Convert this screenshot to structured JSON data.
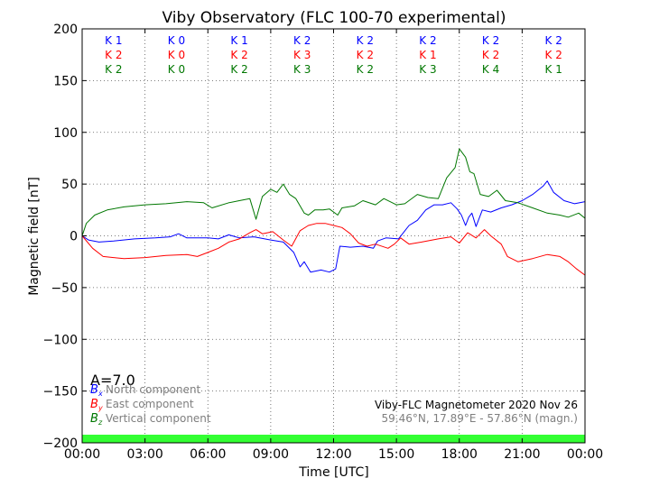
{
  "chart_data": {
    "type": "line",
    "title": "Viby Observatory (FLC 100-70 experimental)",
    "xlabel": "Time [UTC]",
    "ylabel": "Magnetic field [nT]",
    "xlim": [
      0,
      24
    ],
    "ylim": [
      -200,
      200
    ],
    "x_ticks": [
      {
        "value": 0,
        "label": "00:00"
      },
      {
        "value": 3,
        "label": "03:00"
      },
      {
        "value": 6,
        "label": "06:00"
      },
      {
        "value": 9,
        "label": "09:00"
      },
      {
        "value": 12,
        "label": "12:00"
      },
      {
        "value": 15,
        "label": "15:00"
      },
      {
        "value": 18,
        "label": "18:00"
      },
      {
        "value": 21,
        "label": "21:00"
      },
      {
        "value": 24,
        "label": "00:00"
      }
    ],
    "y_ticks": [
      {
        "value": 200,
        "label": "200"
      },
      {
        "value": 150,
        "label": "150"
      },
      {
        "value": 100,
        "label": "100"
      },
      {
        "value": 50,
        "label": "50"
      },
      {
        "value": 0,
        "label": "0"
      },
      {
        "value": -50,
        "label": "−50"
      },
      {
        "value": -100,
        "label": "−100"
      },
      {
        "value": -150,
        "label": "−150"
      },
      {
        "value": -200,
        "label": "−200"
      }
    ],
    "grid": true,
    "a_index": "A=7.0",
    "station_label": "Viby-FLC Magnetometer 2020 Nov 26",
    "coords_label": "59.46°N, 17.89°E - 57.86°N (magn.)",
    "activity_bar_color": "#33ff33",
    "series": [
      {
        "key": "bx",
        "symbol": "B",
        "subscript": "x",
        "name": "North component",
        "color": "#0000ff",
        "points": [
          [
            0,
            0
          ],
          [
            0.3,
            -4
          ],
          [
            0.8,
            -6
          ],
          [
            1.5,
            -5
          ],
          [
            2.5,
            -3
          ],
          [
            3.5,
            -2
          ],
          [
            4.2,
            -1
          ],
          [
            4.6,
            2
          ],
          [
            5,
            -2
          ],
          [
            6,
            -2
          ],
          [
            6.5,
            -3
          ],
          [
            7,
            1
          ],
          [
            7.5,
            -2
          ],
          [
            8.2,
            -1
          ],
          [
            9,
            -4
          ],
          [
            9.6,
            -6
          ],
          [
            10.1,
            -16
          ],
          [
            10.4,
            -30
          ],
          [
            10.6,
            -25
          ],
          [
            10.9,
            -35
          ],
          [
            11.4,
            -33
          ],
          [
            11.8,
            -35
          ],
          [
            12.1,
            -32
          ],
          [
            12.3,
            -10
          ],
          [
            12.8,
            -11
          ],
          [
            13.4,
            -10
          ],
          [
            13.9,
            -12
          ],
          [
            14.1,
            -5
          ],
          [
            14.5,
            -2
          ],
          [
            15.1,
            -3
          ],
          [
            15.6,
            10
          ],
          [
            16,
            15
          ],
          [
            16.4,
            25
          ],
          [
            16.8,
            30
          ],
          [
            17.2,
            30
          ],
          [
            17.6,
            32
          ],
          [
            17.9,
            26
          ],
          [
            18.1,
            20
          ],
          [
            18.3,
            10
          ],
          [
            18.45,
            18
          ],
          [
            18.6,
            22
          ],
          [
            18.8,
            9
          ],
          [
            19.1,
            25
          ],
          [
            19.5,
            23
          ],
          [
            20,
            27
          ],
          [
            20.5,
            30
          ],
          [
            21,
            34
          ],
          [
            21.5,
            40
          ],
          [
            22,
            48
          ],
          [
            22.2,
            53
          ],
          [
            22.5,
            42
          ],
          [
            23,
            34
          ],
          [
            23.5,
            31
          ],
          [
            24,
            33
          ]
        ]
      },
      {
        "key": "by",
        "symbol": "B",
        "subscript": "y",
        "name": "East component",
        "color": "#ff0000",
        "points": [
          [
            0,
            0
          ],
          [
            0.5,
            -12
          ],
          [
            1,
            -20
          ],
          [
            1.5,
            -21
          ],
          [
            2,
            -22
          ],
          [
            3,
            -21
          ],
          [
            4,
            -19
          ],
          [
            5,
            -18
          ],
          [
            5.5,
            -20
          ],
          [
            6,
            -16
          ],
          [
            6.5,
            -12
          ],
          [
            7,
            -6
          ],
          [
            7.5,
            -3
          ],
          [
            8,
            3
          ],
          [
            8.3,
            6
          ],
          [
            8.6,
            2
          ],
          [
            9.1,
            4
          ],
          [
            9.6,
            -4
          ],
          [
            10,
            -10
          ],
          [
            10.4,
            5
          ],
          [
            10.8,
            10
          ],
          [
            11.2,
            12
          ],
          [
            11.6,
            12
          ],
          [
            12,
            10
          ],
          [
            12.4,
            8
          ],
          [
            12.8,
            2
          ],
          [
            13.2,
            -7
          ],
          [
            13.6,
            -10
          ],
          [
            14,
            -8
          ],
          [
            14.6,
            -12
          ],
          [
            14.9,
            -8
          ],
          [
            15.2,
            -2
          ],
          [
            15.6,
            -8
          ],
          [
            16.2,
            -6
          ],
          [
            17,
            -3
          ],
          [
            17.6,
            -1
          ],
          [
            18,
            -7
          ],
          [
            18.4,
            3
          ],
          [
            18.8,
            -2
          ],
          [
            19.2,
            6
          ],
          [
            19.5,
            0
          ],
          [
            20,
            -8
          ],
          [
            20.3,
            -20
          ],
          [
            20.8,
            -25
          ],
          [
            21.5,
            -22
          ],
          [
            22.2,
            -18
          ],
          [
            22.8,
            -20
          ],
          [
            23.2,
            -25
          ],
          [
            23.6,
            -32
          ],
          [
            24,
            -38
          ]
        ]
      },
      {
        "key": "bz",
        "symbol": "B",
        "subscript": "z",
        "name": "Vertical component",
        "color": "#007700",
        "points": [
          [
            0,
            0
          ],
          [
            0.2,
            12
          ],
          [
            0.6,
            20
          ],
          [
            1.2,
            25
          ],
          [
            2,
            28
          ],
          [
            3,
            30
          ],
          [
            4,
            31
          ],
          [
            5,
            33
          ],
          [
            5.8,
            32
          ],
          [
            6.2,
            27
          ],
          [
            7,
            32
          ],
          [
            7.5,
            34
          ],
          [
            8,
            36
          ],
          [
            8.3,
            16
          ],
          [
            8.6,
            38
          ],
          [
            9,
            45
          ],
          [
            9.3,
            42
          ],
          [
            9.6,
            50
          ],
          [
            9.9,
            40
          ],
          [
            10.2,
            36
          ],
          [
            10.6,
            22
          ],
          [
            10.8,
            20
          ],
          [
            11.1,
            25
          ],
          [
            11.5,
            25
          ],
          [
            11.8,
            26
          ],
          [
            12.2,
            20
          ],
          [
            12.4,
            27
          ],
          [
            13,
            29
          ],
          [
            13.4,
            34
          ],
          [
            14,
            30
          ],
          [
            14.4,
            36
          ],
          [
            15,
            30
          ],
          [
            15.4,
            31
          ],
          [
            16,
            40
          ],
          [
            16.5,
            37
          ],
          [
            17,
            36
          ],
          [
            17.4,
            56
          ],
          [
            17.8,
            66
          ],
          [
            18,
            84
          ],
          [
            18.3,
            76
          ],
          [
            18.5,
            62
          ],
          [
            18.7,
            60
          ],
          [
            19,
            40
          ],
          [
            19.4,
            38
          ],
          [
            19.8,
            44
          ],
          [
            20.2,
            34
          ],
          [
            20.8,
            32
          ],
          [
            21.5,
            27
          ],
          [
            22.2,
            22
          ],
          [
            22.8,
            20
          ],
          [
            23.2,
            18
          ],
          [
            23.7,
            22
          ],
          [
            24,
            17
          ]
        ]
      }
    ],
    "k_indices": [
      {
        "bx": "K 1",
        "by": "K 2",
        "bz": "K 2"
      },
      {
        "bx": "K 0",
        "by": "K 0",
        "bz": "K 0"
      },
      {
        "bx": "K 1",
        "by": "K 2",
        "bz": "K 2"
      },
      {
        "bx": "K 2",
        "by": "K 3",
        "bz": "K 3"
      },
      {
        "bx": "K 2",
        "by": "K 2",
        "bz": "K 2"
      },
      {
        "bx": "K 2",
        "by": "K 1",
        "bz": "K 3"
      },
      {
        "bx": "K 2",
        "by": "K 2",
        "bz": "K 4"
      },
      {
        "bx": "K 2",
        "by": "K 2",
        "bz": "K 1"
      }
    ]
  }
}
